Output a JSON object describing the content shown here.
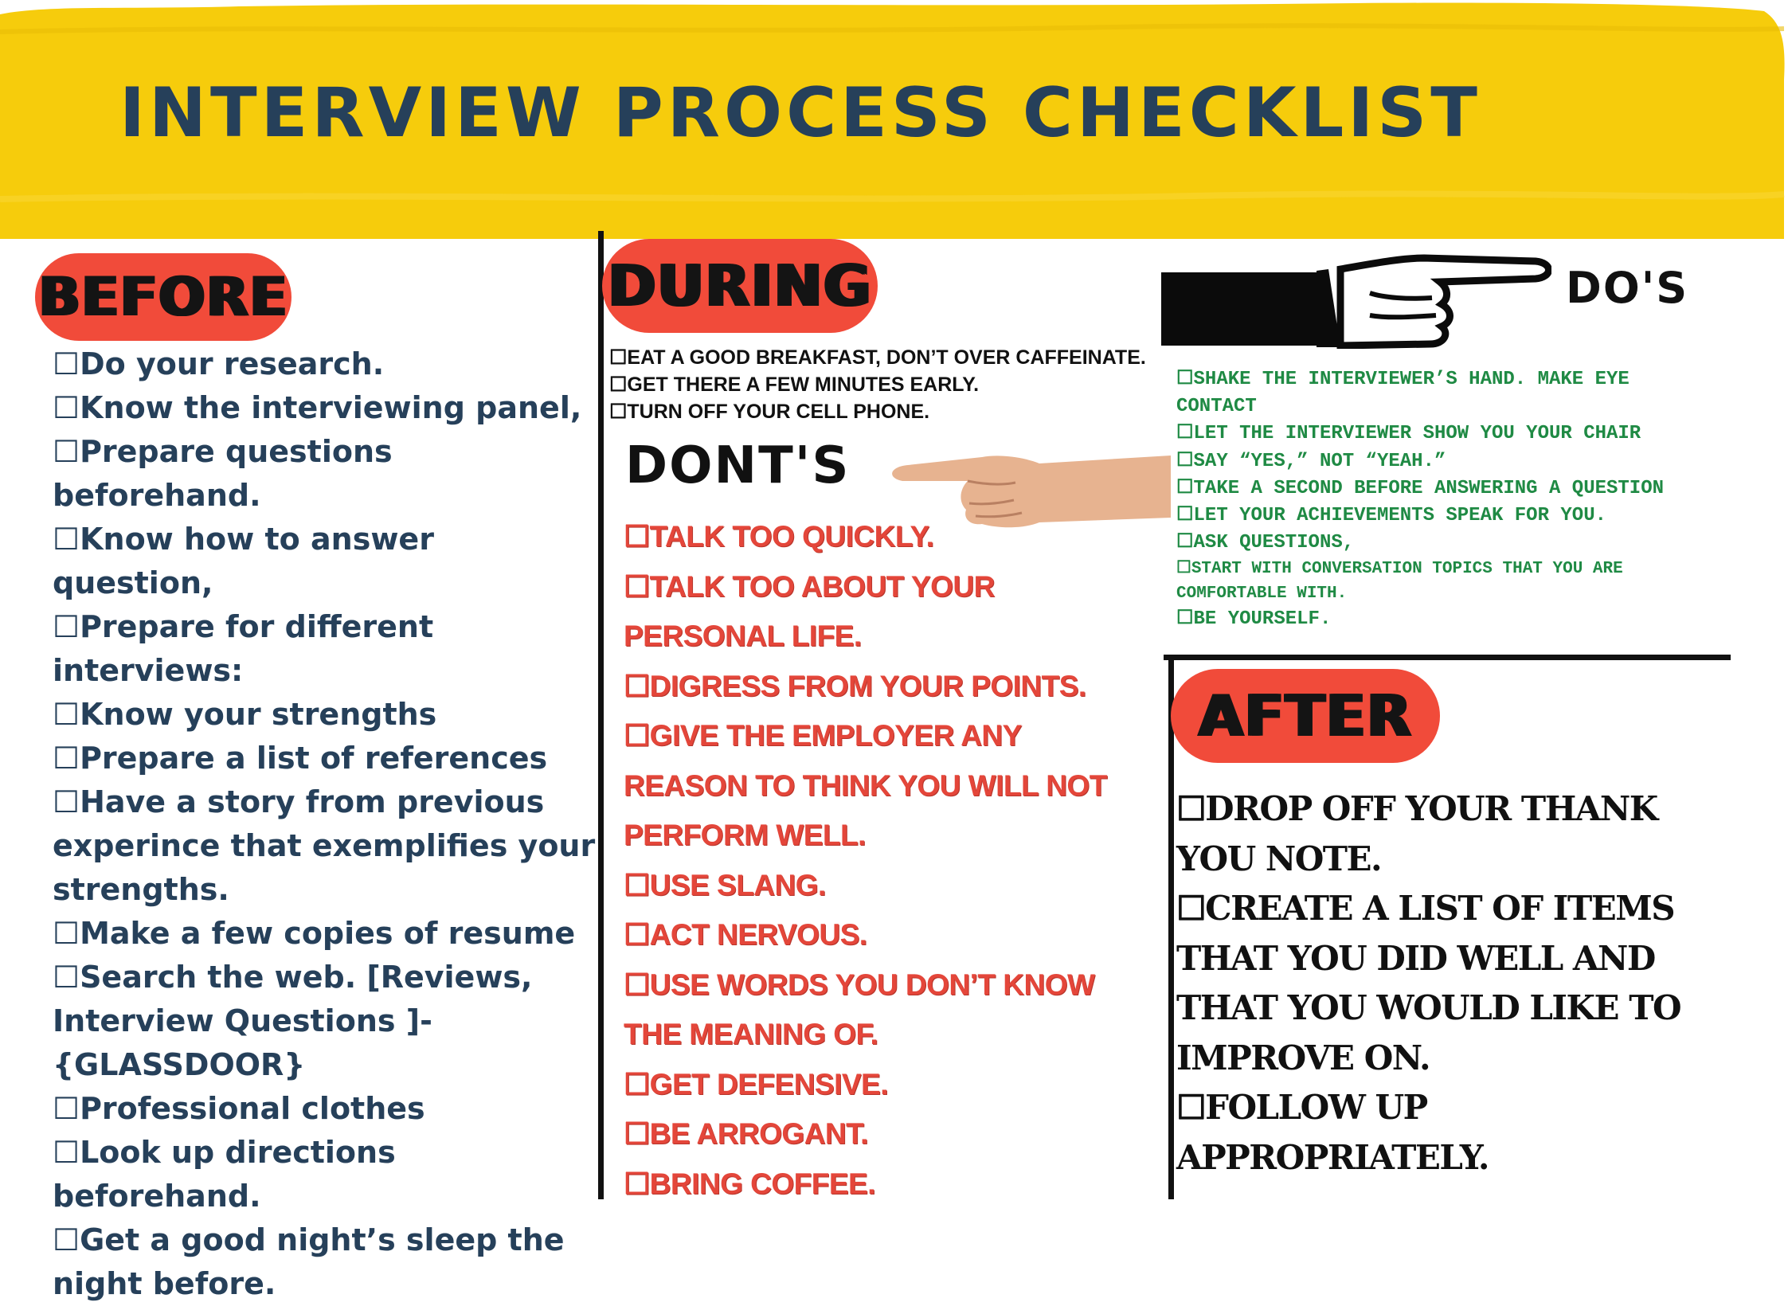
{
  "title": "INTERVIEW  PROCESS CHECKLIST",
  "colors": {
    "banner": "#f6cc0c",
    "pill": "#f14b3a",
    "before_text": "#26405a",
    "dont_text": "#e4463a",
    "do_text": "#1f8a44"
  },
  "before": {
    "heading": "BEFORE",
    "items": [
      "☐Do your research.",
      "☐Know the interviewing panel,",
      "☐Prepare questions beforehand.",
      "☐Know how to answer question,",
      "☐Prepare for different interviews:",
      "☐Know your strengths",
      "☐Prepare a list of references",
      "☐Have a story from previous experince that exemplifies  your strengths.",
      "☐Make a few copies of  resume",
      "☐Search the web. [Reviews, Interview Questions ]-{GLASSDOOR}",
      "☐Professional clothes",
      "☐Look up directions beforehand.",
      "☐Get a good night’s sleep the night before."
    ]
  },
  "during": {
    "heading": "DURING",
    "items": [
      "☐EAT A GOOD BREAKFAST, DON’T OVER CAFFEINATE.",
      "☐GET THERE A FEW MINUTES EARLY.",
      "☐TURN OFF YOUR CELL PHONE."
    ]
  },
  "donts": {
    "heading": "DONT'S",
    "items": [
      "☐TALK TOO QUICKLY.",
      "☐TALK TOO ABOUT YOUR PERSONAL LIFE.",
      "☐DIGRESS FROM YOUR POINTS.",
      "☐GIVE THE EMPLOYER ANY REASON TO THINK YOU WILL NOT PERFORM WELL.",
      "☐USE SLANG.",
      "☐ACT NERVOUS.",
      "☐USE WORDS YOU DON’T KNOW THE MEANING OF.",
      "☐GET DEFENSIVE.",
      "☐BE ARROGANT.",
      "☐BRING COFFEE."
    ]
  },
  "dos": {
    "heading": "DO'S",
    "items": [
      "☐SHAKE THE INTERVIEWER’S HAND. MAKE EYE CONTACT",
      "☐LET THE INTERVIEWER SHOW YOU YOUR CHAIR",
      "☐SAY “YES,” NOT “YEAH.”",
      "☐TAKE A SECOND BEFORE ANSWERING A QUESTION",
      "☐LET YOUR ACHIEVEMENTS SPEAK FOR YOU.",
      "☐ASK QUESTIONS,",
      "☐START WITH CONVERSATION TOPICS THAT YOU ARE COMFORTABLE WITH.",
      "☐BE YOURSELF."
    ]
  },
  "after": {
    "heading": "AFTER",
    "items": [
      "☐DROP OFF YOUR THANK YOU NOTE.",
      "☐CREATE A LIST OF ITEMS THAT YOU DID WELL AND THAT YOU WOULD LIKE TO IMPROVE ON.",
      "☐FOLLOW UP APPROPRIATELY."
    ]
  }
}
